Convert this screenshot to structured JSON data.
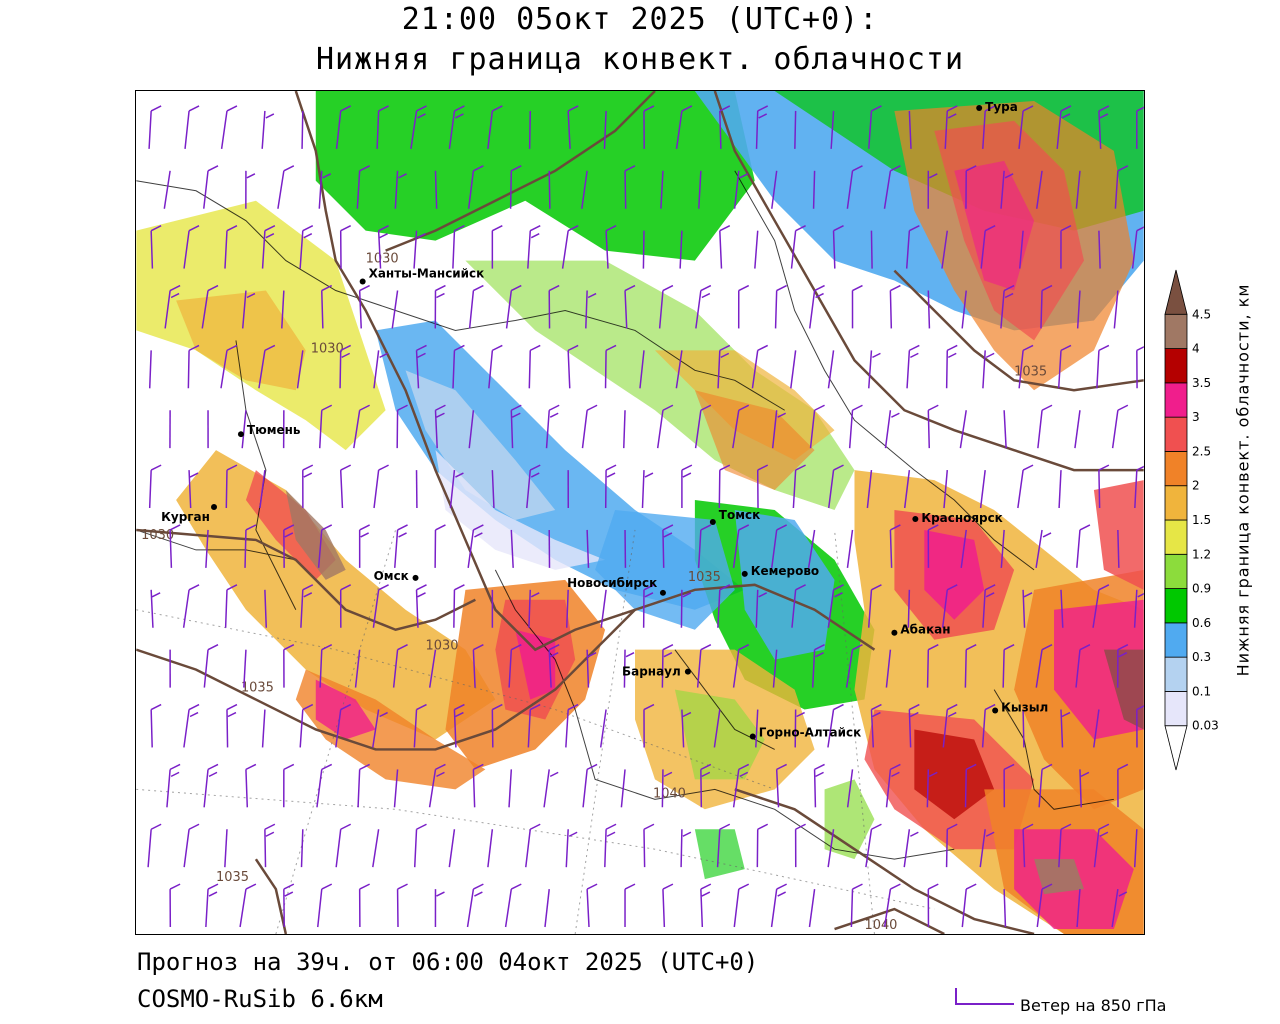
{
  "header": {
    "time_line": "21:00 05окт 2025 (UTC+0):",
    "field_line": "Нижняя граница конвект. облачности"
  },
  "footer": {
    "forecast_line": "Прогноз на 39ч. от 06:00 04окт 2025 (UTC+0)",
    "model_line": "COSMO-RuSib 6.6км"
  },
  "wind_key": {
    "label": "Ветер на 850 гПа",
    "color": "#7a20c8"
  },
  "legend": {
    "title": "Нижняя граница конвект. облачности, км",
    "levels": [
      "0.03",
      "0.1",
      "0.3",
      "0.6",
      "0.9",
      "1.2",
      "1.5",
      "2",
      "2.5",
      "3",
      "3.5",
      "4",
      "4.5"
    ],
    "colors": [
      "#ffffff",
      "#e6e6fa",
      "#b4d2f0",
      "#50aaf0",
      "#00c800",
      "#8cdc3c",
      "#e6e646",
      "#f0b43c",
      "#f08228",
      "#f05050",
      "#f01e8c",
      "#b40000",
      "#a07864",
      "#7a5040"
    ]
  },
  "cities": [
    {
      "name": "Тура"
    },
    {
      "name": "Ханты-Мансийск"
    },
    {
      "name": "Тюмень"
    },
    {
      "name": "Курган"
    },
    {
      "name": "Омск"
    },
    {
      "name": "Новосибирск"
    },
    {
      "name": "Томск"
    },
    {
      "name": "Кемерово"
    },
    {
      "name": "Красноярск"
    },
    {
      "name": "Абакан"
    },
    {
      "name": "Барнаул"
    },
    {
      "name": "Горно-Алтайск"
    },
    {
      "name": "Кызыл"
    }
  ],
  "isobar_labels": [
    "1030",
    "1030",
    "1030",
    "1035",
    "1030",
    "1035",
    "1035",
    "1040",
    "1035",
    "1040"
  ]
}
